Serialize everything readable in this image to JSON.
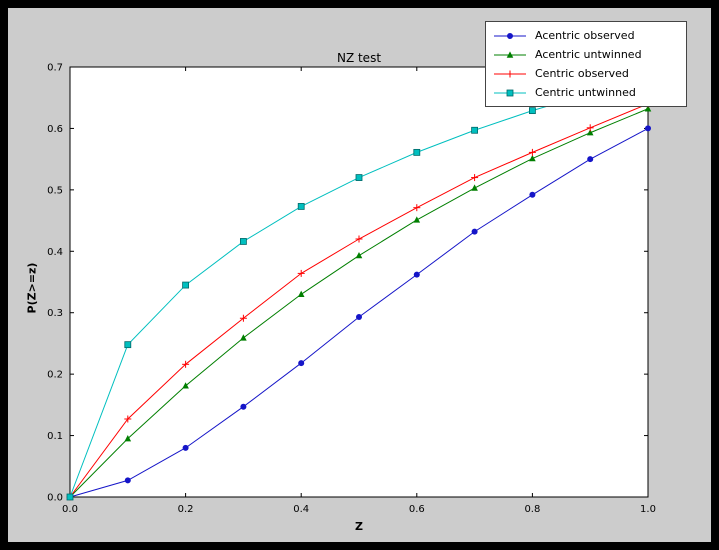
{
  "chart_data": {
    "type": "line",
    "title": "NZ test",
    "xlabel": "Z",
    "ylabel": "P(Z>=z)",
    "xlim": [
      0.0,
      1.0
    ],
    "ylim": [
      0.0,
      0.7
    ],
    "xticks": [
      "0.0",
      "0.2",
      "0.4",
      "0.6",
      "0.8",
      "1.0"
    ],
    "yticks": [
      "0.0",
      "0.1",
      "0.2",
      "0.3",
      "0.4",
      "0.5",
      "0.6",
      "0.7"
    ],
    "grid": false,
    "legend_position": "upper right",
    "background_color": "#cccccc",
    "axes_color": "#ffffff",
    "x": [
      0.0,
      0.1,
      0.2,
      0.3,
      0.4,
      0.5,
      0.6,
      0.7,
      0.8,
      0.9,
      1.0
    ],
    "series": [
      {
        "name": "Acentric observed",
        "color": "#1515c8",
        "marker": "circle",
        "values": [
          0.0,
          0.027,
          0.08,
          0.147,
          0.218,
          0.293,
          0.362,
          0.432,
          0.492,
          0.55,
          0.6
        ]
      },
      {
        "name": "Acentric untwinned",
        "color": "#007f00",
        "marker": "triangle",
        "values": [
          0.0,
          0.095,
          0.181,
          0.259,
          0.33,
          0.393,
          0.451,
          0.503,
          0.551,
          0.593,
          0.632
        ]
      },
      {
        "name": "Centric observed",
        "color": "#ff0000",
        "marker": "plus",
        "values": [
          0.0,
          0.127,
          0.216,
          0.291,
          0.364,
          0.42,
          0.471,
          0.52,
          0.561,
          0.601,
          0.64
        ]
      },
      {
        "name": "Centric untwinned",
        "color": "#00bfbf",
        "marker": "square",
        "values": [
          0.0,
          0.248,
          0.345,
          0.416,
          0.473,
          0.52,
          0.561,
          0.597,
          0.629,
          0.657,
          0.683
        ]
      }
    ]
  }
}
